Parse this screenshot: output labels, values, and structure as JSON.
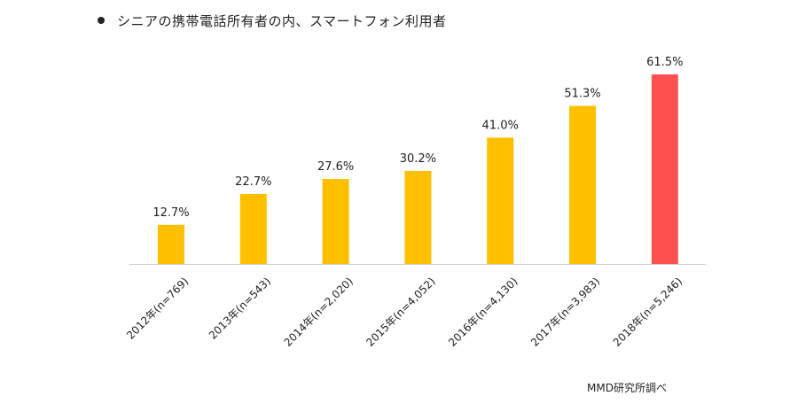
{
  "title": "シニアの携帯電話所有者の内、スマートフォン利用者",
  "source": "MMD研究所調べ",
  "chart_data": {
    "type": "bar",
    "categories": [
      "2012年(n=769)",
      "2013年(n=543)",
      "2014年(n=2,020)",
      "2015年(n=4,052)",
      "2016年(n=4,130)",
      "2017年(n=3,983)",
      "2018年(n=5,246)"
    ],
    "values": [
      12.7,
      22.7,
      27.6,
      30.2,
      41.0,
      51.3,
      61.5
    ],
    "value_labels": [
      "12.7%",
      "22.7%",
      "27.6%",
      "30.2%",
      "41.0%",
      "51.3%",
      "61.5%"
    ],
    "colors": [
      "#FFC000",
      "#FFC000",
      "#FFC000",
      "#FFC000",
      "#FFC000",
      "#FFC000",
      "#FF5050"
    ],
    "ylim": [
      0,
      61.5
    ],
    "grid": false,
    "xlabel": "",
    "ylabel": ""
  }
}
